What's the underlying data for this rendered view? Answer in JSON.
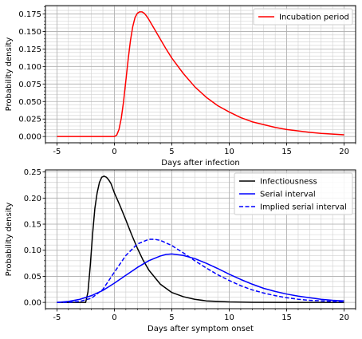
{
  "chart_data": [
    {
      "type": "line",
      "title": "",
      "xlabel": "Days after infection",
      "ylabel": "Probability density",
      "xlim": [
        -6,
        21
      ],
      "ylim": [
        -0.0089,
        0.1869
      ],
      "xticks": [
        "-5",
        "0",
        "5",
        "10",
        "15",
        "20"
      ],
      "xtick_values": [
        -5,
        0,
        5,
        10,
        15,
        20
      ],
      "yticks": [
        "0.000",
        "0.025",
        "0.050",
        "0.075",
        "0.100",
        "0.125",
        "0.150",
        "0.175"
      ],
      "ytick_values": [
        0,
        0.025,
        0.05,
        0.075,
        0.1,
        0.125,
        0.15,
        0.175
      ],
      "grid": true,
      "minor_grid": true,
      "legend_position": "upper right",
      "series": [
        {
          "name": "Incubation period",
          "color": "#ff0000",
          "style": "solid",
          "x": [
            -5,
            0,
            0.2,
            0.4,
            0.6,
            0.8,
            1,
            1.2,
            1.4,
            1.6,
            1.8,
            2,
            2.2,
            2.4,
            2.6,
            2.8,
            3,
            3.5,
            4,
            4.5,
            5,
            6,
            7,
            8,
            9,
            10,
            11,
            12,
            13,
            14,
            15,
            16,
            17,
            18,
            19,
            20
          ],
          "y": [
            0,
            0,
            0.002,
            0.01,
            0.026,
            0.05,
            0.08,
            0.11,
            0.137,
            0.157,
            0.17,
            0.176,
            0.178,
            0.178,
            0.176,
            0.172,
            0.167,
            0.153,
            0.139,
            0.125,
            0.112,
            0.09,
            0.071,
            0.056,
            0.044,
            0.035,
            0.027,
            0.021,
            0.017,
            0.013,
            0.01,
            0.008,
            0.006,
            0.0045,
            0.0035,
            0.0025
          ]
        }
      ]
    },
    {
      "type": "line",
      "title": "",
      "xlabel": "Days after symptom onset",
      "ylabel": "Probability density",
      "xlim": [
        -6,
        21
      ],
      "ylim": [
        -0.012,
        0.254
      ],
      "xticks": [
        "-5",
        "0",
        "5",
        "10",
        "15",
        "20"
      ],
      "xtick_values": [
        -5,
        0,
        5,
        10,
        15,
        20
      ],
      "yticks": [
        "0.00",
        "0.05",
        "0.10",
        "0.15",
        "0.20",
        "0.25"
      ],
      "ytick_values": [
        0,
        0.05,
        0.1,
        0.15,
        0.2,
        0.25
      ],
      "grid": true,
      "minor_grid": true,
      "legend_position": "upper right",
      "series": [
        {
          "name": "Infectiousness",
          "color": "#000000",
          "style": "solid",
          "x": [
            -5,
            -2.5,
            -2.3,
            -2.1,
            -1.9,
            -1.7,
            -1.5,
            -1.3,
            -1.1,
            -0.9,
            -0.7,
            -0.5,
            -0.3,
            0,
            0.5,
            1,
            1.5,
            2,
            2.5,
            3,
            4,
            5,
            6,
            7,
            8,
            10,
            12,
            15,
            20
          ],
          "y": [
            0,
            0,
            0.02,
            0.07,
            0.13,
            0.18,
            0.21,
            0.23,
            0.24,
            0.242,
            0.24,
            0.235,
            0.228,
            0.21,
            0.185,
            0.158,
            0.13,
            0.104,
            0.081,
            0.062,
            0.035,
            0.019,
            0.011,
            0.006,
            0.003,
            0.001,
            0.0003,
            0,
            0
          ]
        },
        {
          "name": "Serial interval",
          "color": "#0000ff",
          "style": "solid",
          "x": [
            -5,
            -4,
            -3,
            -2,
            -1,
            0,
            1,
            2,
            3,
            4,
            4.5,
            5,
            6,
            7,
            8,
            9,
            10,
            11,
            12,
            13,
            14,
            15,
            16,
            17,
            18,
            19,
            20
          ],
          "y": [
            0,
            0.002,
            0.006,
            0.013,
            0.023,
            0.037,
            0.052,
            0.067,
            0.08,
            0.089,
            0.092,
            0.093,
            0.09,
            0.084,
            0.075,
            0.065,
            0.054,
            0.044,
            0.035,
            0.027,
            0.021,
            0.016,
            0.012,
            0.009,
            0.006,
            0.004,
            0.003
          ]
        },
        {
          "name": "Implied serial interval",
          "color": "#0000ff",
          "style": "dashed",
          "x": [
            -5,
            -4,
            -3,
            -2,
            -1,
            0,
            1,
            2,
            3,
            3.5,
            4,
            5,
            6,
            7,
            8,
            9,
            10,
            11,
            12,
            13,
            14,
            15,
            16,
            17,
            18,
            19,
            20
          ],
          "y": [
            0,
            0.0002,
            0.002,
            0.008,
            0.025,
            0.058,
            0.09,
            0.112,
            0.121,
            0.121,
            0.119,
            0.109,
            0.095,
            0.08,
            0.066,
            0.053,
            0.042,
            0.032,
            0.024,
            0.018,
            0.013,
            0.009,
            0.006,
            0.004,
            0.003,
            0.002,
            0.001
          ]
        }
      ]
    }
  ]
}
